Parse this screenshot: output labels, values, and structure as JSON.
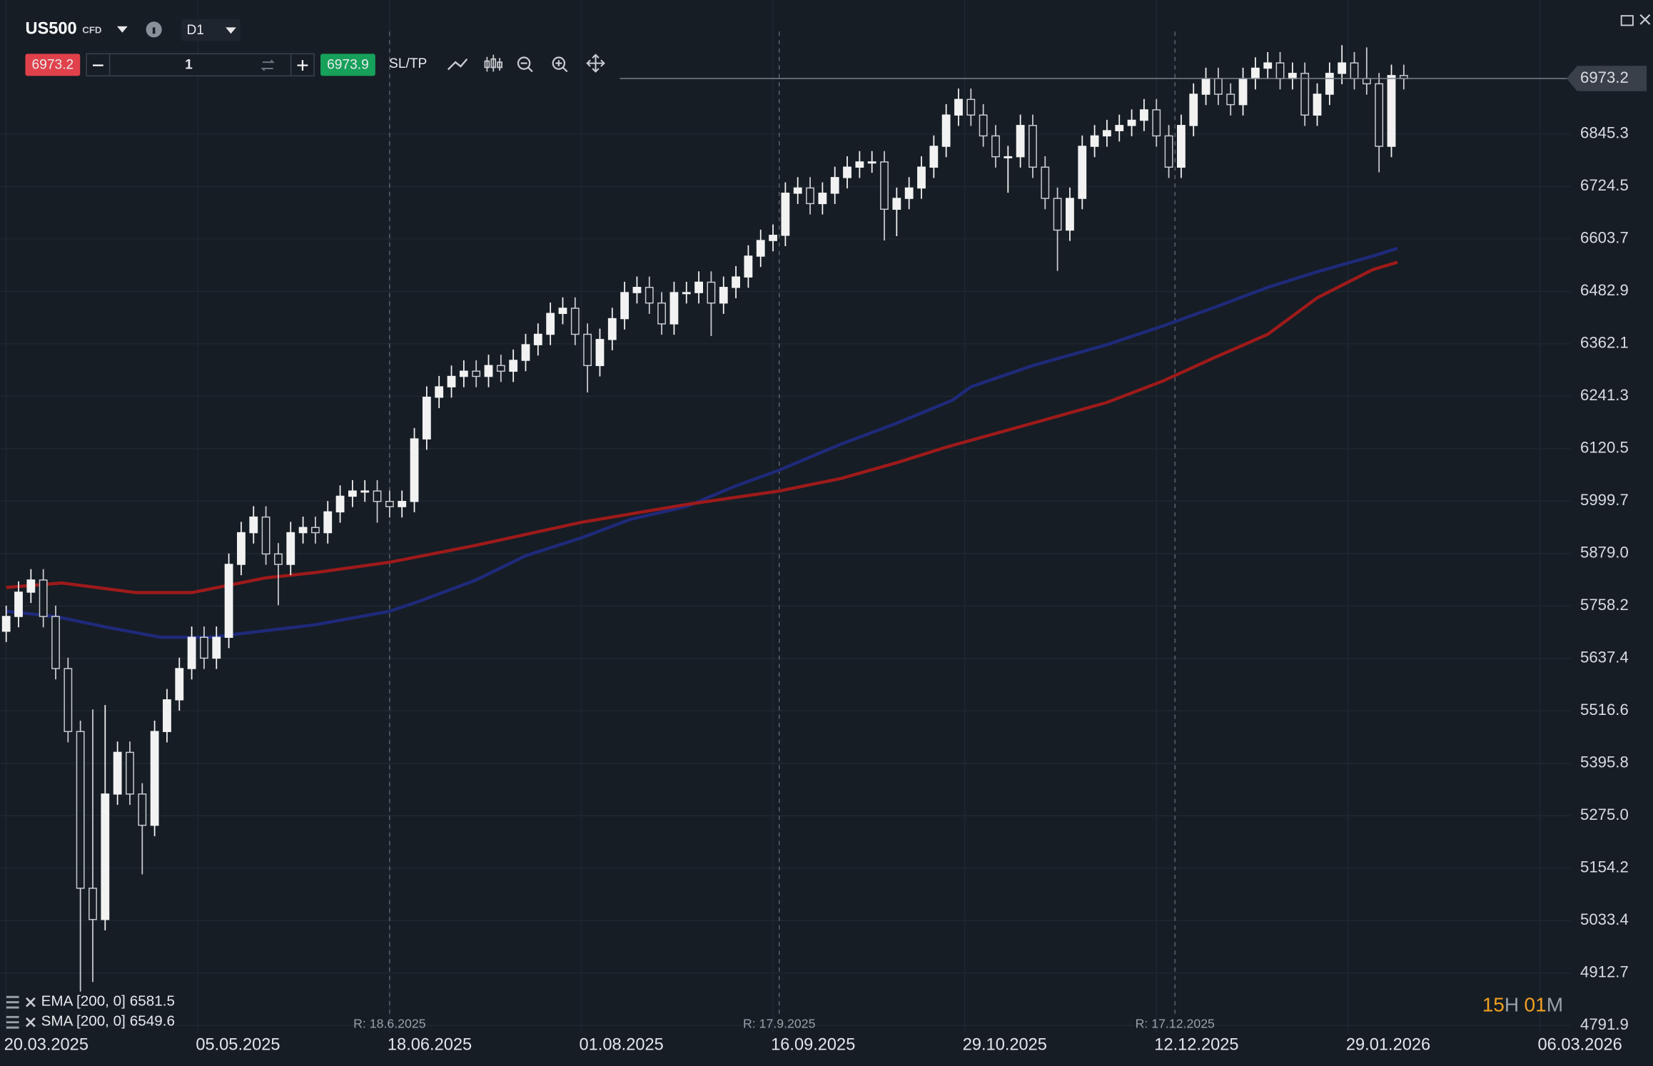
{
  "toolbar": {
    "symbol": "US500",
    "instrument_type": "CFD",
    "timeframe": "D1",
    "sell_price": 6973.2,
    "quantity": 1,
    "buy_price": 6973.9,
    "sl_tp": "SL/TP"
  },
  "timer": {
    "hours": "15",
    "hours_unit": "H",
    "minutes": "01",
    "minutes_unit": "M"
  },
  "chart_data": {
    "type": "candlestick",
    "x": [
      0,
      2,
      4,
      6,
      8,
      10,
      12,
      14,
      16,
      18,
      20,
      22,
      24,
      26,
      28,
      30,
      32,
      34,
      36,
      38,
      40,
      42,
      44,
      46,
      48,
      50,
      52,
      54,
      56,
      58,
      60,
      62,
      64,
      66,
      68,
      70,
      72,
      74,
      76,
      78,
      80,
      82,
      84,
      86,
      88,
      90,
      92,
      94,
      96,
      98,
      100,
      102,
      104,
      106,
      108,
      110,
      112,
      114,
      116,
      118,
      120,
      122,
      124,
      126,
      128,
      130,
      132,
      134,
      136,
      138,
      140,
      142,
      144,
      146,
      148,
      150,
      152,
      154,
      156,
      158,
      160,
      162,
      164,
      166,
      168,
      170,
      172,
      174,
      176,
      178,
      180,
      182,
      184,
      186,
      188,
      190,
      192,
      194,
      196,
      198,
      200,
      202,
      204,
      206,
      208,
      210,
      212,
      214,
      216,
      218,
      220,
      222,
      224,
      226
    ],
    "open": [
      5700,
      5734,
      5790,
      5818,
      5734,
      5614,
      5469,
      5108,
      5036,
      5325,
      5421,
      5325,
      5253,
      5469,
      5542,
      5614,
      5686,
      5638,
      5686,
      5854,
      5927,
      5963,
      5878,
      5854,
      5927,
      5939,
      5927,
      5975,
      6011,
      6023,
      6023,
      5999,
      5987,
      5999,
      6143,
      6239,
      6263,
      6287,
      6299,
      6287,
      6312,
      6299,
      6324,
      6360,
      6384,
      6432,
      6444,
      6384,
      6312,
      6372,
      6420,
      6480,
      6492,
      6456,
      6408,
      6480,
      6480,
      6504,
      6456,
      6492,
      6516,
      6564,
      6600,
      6612,
      6709,
      6721,
      6685,
      6709,
      6745,
      6769,
      6781,
      6781,
      6672,
      6697,
      6721,
      6769,
      6817,
      6889,
      6925,
      6889,
      6841,
      6793,
      6793,
      6865,
      6769,
      6697,
      6624,
      6697,
      6817,
      6841,
      6853,
      6865,
      6877,
      6901,
      6841,
      6769,
      6865,
      6937,
      6973,
      6937,
      6913,
      6973,
      6997,
      7009,
      6973,
      6985,
      6889,
      6937,
      6985,
      7009,
      6973,
      6961,
      6817,
      6980
    ],
    "high": [
      5759,
      5815,
      5843,
      5843,
      5759,
      5639,
      5494,
      5520,
      5530,
      5446,
      5446,
      5350,
      5494,
      5567,
      5639,
      5711,
      5711,
      5711,
      5879,
      5952,
      5988,
      5988,
      5903,
      5952,
      5964,
      5964,
      6000,
      6036,
      6048,
      6048,
      6048,
      6024,
      6024,
      6168,
      6264,
      6288,
      6312,
      6324,
      6324,
      6337,
      6337,
      6349,
      6385,
      6409,
      6457,
      6469,
      6469,
      6409,
      6397,
      6445,
      6505,
      6517,
      6517,
      6481,
      6505,
      6505,
      6529,
      6529,
      6517,
      6541,
      6589,
      6625,
      6637,
      6734,
      6746,
      6746,
      6734,
      6770,
      6794,
      6806,
      6806,
      6806,
      6722,
      6746,
      6794,
      6842,
      6914,
      6950,
      6950,
      6914,
      6866,
      6818,
      6890,
      6890,
      6794,
      6722,
      6722,
      6842,
      6866,
      6878,
      6890,
      6902,
      6926,
      6926,
      6866,
      6890,
      6962,
      6998,
      6998,
      6962,
      6998,
      7022,
      7034,
      7034,
      7010,
      7010,
      6962,
      7010,
      7050,
      7034,
      7045,
      6986,
      7005,
      7005
    ],
    "low": [
      5675,
      5709,
      5765,
      5709,
      5589,
      5444,
      4870,
      4892,
      5011,
      5300,
      5300,
      5140,
      5228,
      5444,
      5517,
      5589,
      5613,
      5613,
      5661,
      5829,
      5902,
      5853,
      5760,
      5829,
      5902,
      5902,
      5902,
      5950,
      5986,
      5998,
      5950,
      5962,
      5962,
      5974,
      6118,
      6214,
      6238,
      6262,
      6262,
      6262,
      6274,
      6274,
      6299,
      6335,
      6359,
      6407,
      6359,
      6250,
      6287,
      6347,
      6395,
      6455,
      6431,
      6383,
      6383,
      6455,
      6455,
      6380,
      6431,
      6467,
      6491,
      6539,
      6575,
      6587,
      6684,
      6660,
      6660,
      6684,
      6720,
      6744,
      6756,
      6600,
      6610,
      6672,
      6696,
      6744,
      6792,
      6864,
      6864,
      6816,
      6768,
      6710,
      6768,
      6744,
      6672,
      6530,
      6599,
      6672,
      6792,
      6816,
      6828,
      6840,
      6852,
      6816,
      6744,
      6744,
      6840,
      6912,
      6912,
      6888,
      6888,
      6948,
      6972,
      6948,
      6948,
      6864,
      6864,
      6912,
      6960,
      6948,
      6936,
      6757,
      6792,
      6948
    ],
    "close": [
      5734,
      5790,
      5818,
      5734,
      5614,
      5469,
      5108,
      5036,
      5325,
      5421,
      5325,
      5253,
      5469,
      5542,
      5614,
      5686,
      5638,
      5686,
      5854,
      5927,
      5963,
      5878,
      5854,
      5927,
      5939,
      5927,
      5975,
      6011,
      6023,
      6023,
      5999,
      5987,
      5999,
      6143,
      6239,
      6263,
      6287,
      6299,
      6287,
      6312,
      6299,
      6324,
      6360,
      6384,
      6432,
      6444,
      6384,
      6312,
      6372,
      6420,
      6480,
      6492,
      6456,
      6408,
      6480,
      6480,
      6504,
      6456,
      6492,
      6516,
      6564,
      6600,
      6612,
      6709,
      6721,
      6685,
      6709,
      6745,
      6769,
      6781,
      6781,
      6672,
      6697,
      6721,
      6769,
      6817,
      6889,
      6925,
      6889,
      6841,
      6793,
      6793,
      6865,
      6769,
      6697,
      6624,
      6697,
      6817,
      6841,
      6853,
      6865,
      6877,
      6901,
      6841,
      6769,
      6865,
      6937,
      6973,
      6937,
      6913,
      6973,
      6997,
      7009,
      6973,
      6985,
      6889,
      6937,
      6985,
      7009,
      6973,
      6961,
      6817,
      6980,
      6973
    ],
    "up_color": "#f2f2f2",
    "down_color": "#c9ccd0",
    "indicators": [
      {
        "name": "EMA [200, 0]",
        "value": 6581.5,
        "color": "#1f2a7a",
        "x": [
          0,
          8,
          16,
          25,
          33,
          50,
          62,
          67,
          76,
          84,
          93,
          101,
          110,
          118,
          125,
          135,
          144,
          153,
          156,
          166,
          178,
          187,
          195,
          204,
          212,
          221,
          225
        ],
        "values": [
          5746,
          5734,
          5710,
          5686,
          5686,
          5715,
          5746,
          5770,
          5818,
          5874,
          5915,
          5958,
          5987,
          6035,
          6071,
          6131,
          6179,
          6232,
          6263,
          6312,
          6360,
          6403,
          6444,
          6492,
          6528,
          6564,
          6582
        ]
      },
      {
        "name": "SMA [200, 0]",
        "value": 6549.6,
        "color": "#9e1a1a",
        "x": [
          0,
          9,
          21,
          30,
          42,
          50,
          62,
          76,
          93,
          110,
          125,
          135,
          144,
          152,
          166,
          178,
          187,
          195,
          204,
          212,
          221,
          225
        ],
        "values": [
          5801,
          5811,
          5789,
          5789,
          5823,
          5835,
          5859,
          5898,
          5951,
          5992,
          6023,
          6052,
          6088,
          6124,
          6179,
          6227,
          6276,
          6328,
          6384,
          6468,
          6533,
          6550
        ]
      }
    ],
    "last_price": 6973.2,
    "annotations": [
      {
        "x": 62,
        "label": "R: 18.6.2025"
      },
      {
        "x": 125,
        "label": "R: 17.9.2025"
      },
      {
        "x": 189,
        "label": "R: 17.12.2025"
      }
    ],
    "xlim": [
      -1,
      253
    ],
    "xticks": [
      {
        "value": 0,
        "label": "20.03.2025"
      },
      {
        "value": 31,
        "label": "05.05.2025"
      },
      {
        "value": 62,
        "label": "18.06.2025"
      },
      {
        "value": 93,
        "label": "01.08.2025"
      },
      {
        "value": 124,
        "label": "16.09.2025"
      },
      {
        "value": 155,
        "label": "29.10.2025"
      },
      {
        "value": 186,
        "label": "12.12.2025"
      },
      {
        "value": 217,
        "label": "29.01.2026"
      },
      {
        "value": 248,
        "label": "06.03.2026"
      }
    ],
    "ylim": [
      4775,
      7154
    ],
    "yticks": [
      4791.9,
      4912.7,
      5033.4,
      5154.2,
      {
        "value": 5275,
        "label": "5275.0"
      },
      5395.8,
      5516.6,
      5637.4,
      5758.2,
      {
        "value": 5879,
        "label": "5879.0"
      },
      5999.7,
      6120.5,
      6241.3,
      6362.1,
      6482.9,
      6603.7,
      6724.5,
      6845.3
    ],
    "grid": true
  }
}
